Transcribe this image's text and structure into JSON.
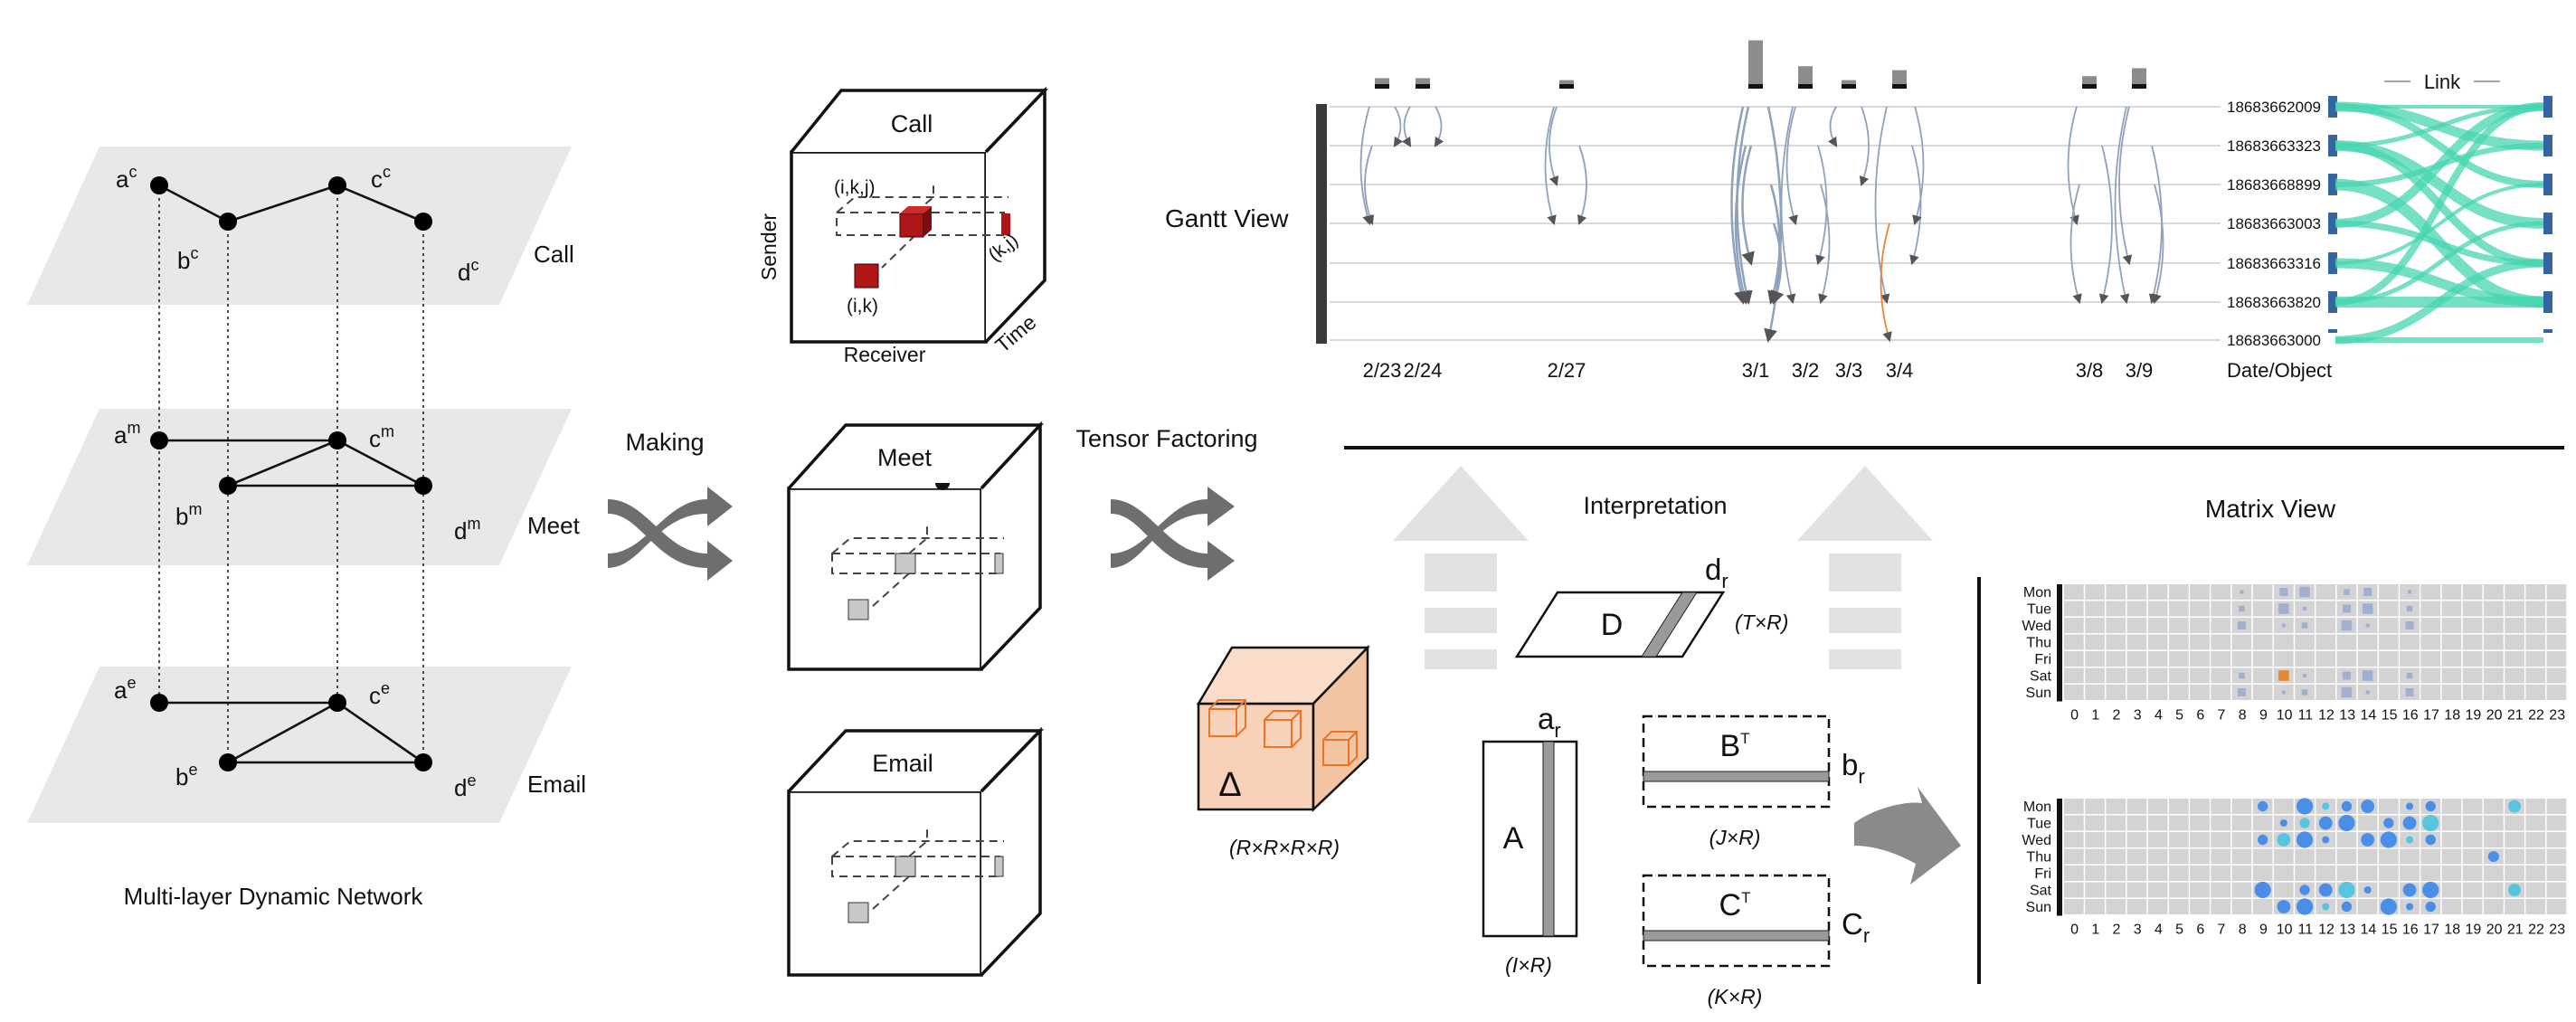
{
  "left_network": {
    "caption": "Multi-layer Dynamic Network",
    "layers": [
      {
        "name": "Call",
        "nodes": [
          {
            "base": "a",
            "sup": "c"
          },
          {
            "base": "b",
            "sup": "c"
          },
          {
            "base": "c",
            "sup": "c"
          },
          {
            "base": "d",
            "sup": "c"
          }
        ]
      },
      {
        "name": "Meet",
        "nodes": [
          {
            "base": "a",
            "sup": "m"
          },
          {
            "base": "b",
            "sup": "m"
          },
          {
            "base": "c",
            "sup": "m"
          },
          {
            "base": "d",
            "sup": "m"
          }
        ]
      },
      {
        "name": "Email",
        "nodes": [
          {
            "base": "a",
            "sup": "e"
          },
          {
            "base": "b",
            "sup": "e"
          },
          {
            "base": "c",
            "sup": "e"
          },
          {
            "base": "d",
            "sup": "e"
          }
        ]
      }
    ]
  },
  "arrows": {
    "making": "Making",
    "tensor_factoring": "Tensor Factoring"
  },
  "tensors": {
    "call": {
      "title": "Call",
      "sender": "Sender",
      "receiver": "Receiver",
      "time": "Time",
      "ikj": "(i,k,j)",
      "kj": "(k,j)",
      "ik": "(i,k)"
    },
    "meet": {
      "title": "Meet"
    },
    "email": {
      "title": "Email"
    }
  },
  "core_tensor": {
    "symbol": "Δ",
    "dims": "(R×R×R×R)"
  },
  "factors": {
    "interpretation": "Interpretation",
    "D": {
      "label": "D",
      "vec": "d",
      "vec_sub": "r",
      "dims": "(T×R)"
    },
    "A": {
      "label": "A",
      "vec": "a",
      "vec_sub": "r",
      "dims": "(I×R)"
    },
    "B": {
      "label": "B",
      "sup": "T",
      "vec": "b",
      "vec_sub": "r",
      "dims": "(J×R)"
    },
    "C": {
      "label": "C",
      "sup": "T",
      "vec": "C",
      "vec_sub": "r",
      "dims": "(K×R)"
    }
  },
  "gantt": {
    "title": "Gantt View",
    "objects": [
      "18683662009",
      "18683663323",
      "18683668899",
      "18683663003",
      "18683663316",
      "18683663820",
      "18683663000"
    ],
    "dates": [
      "2/23",
      "2/24",
      "2/27",
      "3/1",
      "3/2",
      "3/3",
      "3/4",
      "3/8",
      "3/9"
    ],
    "axis_label": "Date/Object",
    "link_legend": "Link",
    "activity_bars": [
      3,
      3,
      2,
      22,
      9,
      2,
      7,
      4,
      8
    ],
    "colors": {
      "link": "#47d6b0",
      "arc": "#8ea2bd",
      "arc_alt": "#e9852e",
      "object_marker": "#3565a0"
    }
  },
  "matrix_view": {
    "title": "Matrix View",
    "days": [
      "Mon",
      "Tue",
      "Wed",
      "Thu",
      "Fri",
      "Sat",
      "Sun"
    ],
    "hours": [
      "0",
      "1",
      "2",
      "3",
      "4",
      "5",
      "6",
      "7",
      "8",
      "9",
      "10",
      "11",
      "12",
      "13",
      "14",
      "15",
      "16",
      "17",
      "18",
      "19",
      "20",
      "21",
      "22",
      "23"
    ],
    "colors": {
      "cell": "#d3d3d3",
      "square": "#9fb0d0",
      "orange": "#e9852e",
      "circle": "#4a8ee8",
      "circle_light": "#57c5de"
    }
  }
}
